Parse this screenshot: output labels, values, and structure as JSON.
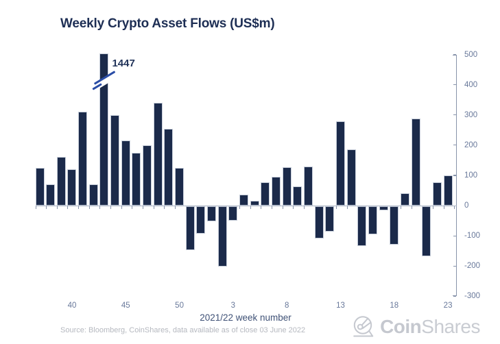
{
  "chart_data": {
    "type": "bar",
    "title": "Weekly Crypto Asset Flows (US$m)",
    "xlabel": "2021/22 week number",
    "ylabel": "",
    "grid": false,
    "y_axis": {
      "min": -300,
      "max": 500,
      "step": 100,
      "side": "right"
    },
    "weeks": [
      37,
      38,
      39,
      40,
      41,
      42,
      43,
      44,
      45,
      46,
      47,
      48,
      49,
      50,
      51,
      52,
      1,
      2,
      3,
      4,
      5,
      6,
      7,
      8,
      9,
      10,
      11,
      12,
      13,
      14,
      15,
      16,
      17,
      18,
      19,
      20,
      21,
      22,
      23
    ],
    "values": [
      125,
      70,
      160,
      120,
      310,
      70,
      1447,
      300,
      215,
      175,
      200,
      340,
      255,
      125,
      -145,
      -90,
      -50,
      -200,
      -48,
      36,
      17,
      78,
      95,
      128,
      63,
      130,
      -107,
      -83,
      280,
      185,
      -130,
      -93,
      -14,
      -127,
      41,
      288,
      -164,
      77,
      100
    ],
    "x_tick_weeks": [
      40,
      45,
      50,
      3,
      8,
      13,
      18,
      23
    ],
    "clipped_at": 500,
    "annotation": {
      "week": 43,
      "value": 1447,
      "text": "1447"
    },
    "colors": {
      "bar": "#1b2a4a",
      "bar_edge": "#c6cdd9",
      "break": "#2a4da6",
      "axis": "#8793aa",
      "baseline": "#a8b1c2",
      "tick_label": "#68789a",
      "title": "#1d2e54",
      "xlabel": "#3f5176",
      "annotation": "#22345a",
      "source": "#b5b8bf",
      "logo": "#c5c8cf"
    }
  },
  "footer": {
    "source": "Source: Bloomberg, CoinShares, data available as of close 03 June 2022",
    "logo_bold": "Coin",
    "logo_light": "Shares"
  }
}
